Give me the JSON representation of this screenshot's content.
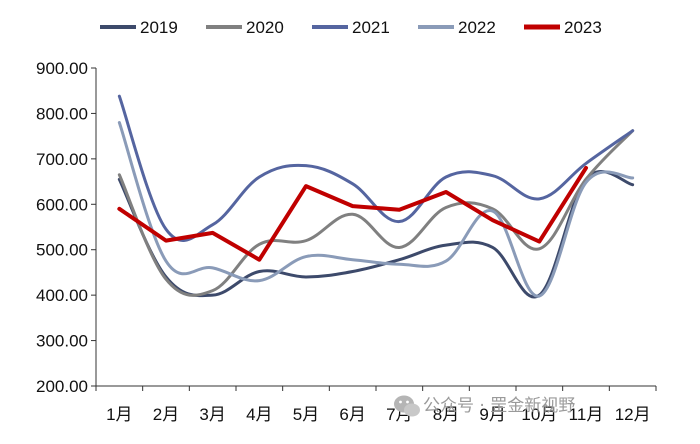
{
  "chart_data": {
    "type": "line",
    "categories": [
      "1月",
      "2月",
      "3月",
      "4月",
      "5月",
      "6月",
      "7月",
      "8月",
      "9月",
      "10月",
      "11月",
      "12月"
    ],
    "ylim": [
      200,
      900
    ],
    "yticks": [
      "200.00",
      "300.00",
      "400.00",
      "500.00",
      "600.00",
      "700.00",
      "800.00",
      "900.00"
    ],
    "series": [
      {
        "name": "2019",
        "color": "#3d4a6b",
        "smooth": true,
        "values": [
          655,
          440,
          400,
          452,
          440,
          452,
          478,
          510,
          505,
          400,
          655,
          643
        ]
      },
      {
        "name": "2020",
        "color": "#808080",
        "smooth": true,
        "values": [
          665,
          435,
          410,
          512,
          520,
          578,
          505,
          593,
          590,
          502,
          655,
          762
        ]
      },
      {
        "name": "2021",
        "color": "#5565a0",
        "smooth": true,
        "values": [
          838,
          545,
          555,
          660,
          685,
          645,
          562,
          660,
          663,
          612,
          690,
          762
        ]
      },
      {
        "name": "2022",
        "color": "#8a9bb8",
        "smooth": true,
        "values": [
          780,
          475,
          460,
          432,
          485,
          478,
          468,
          475,
          585,
          398,
          648,
          658
        ]
      },
      {
        "name": "2023",
        "color": "#c00000",
        "smooth": false,
        "values": [
          590,
          520,
          537,
          478,
          640,
          596,
          588,
          627,
          565,
          518,
          680,
          null
        ]
      }
    ]
  },
  "watermark": {
    "icon": "wechat-icon",
    "text": "公众号 · 罡金新视野"
  }
}
